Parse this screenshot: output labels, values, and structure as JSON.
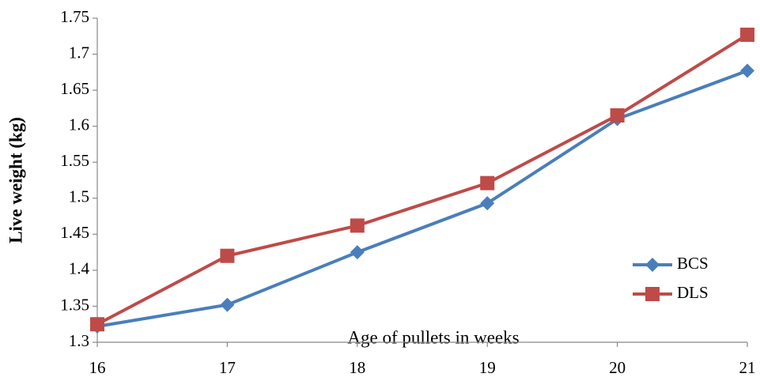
{
  "chart_data": {
    "type": "line",
    "x_label": "Age of pullets in weeks",
    "y_label": "Live weight (kg)",
    "x": [
      16,
      17,
      18,
      19,
      20,
      21
    ],
    "xlim": [
      16,
      21
    ],
    "xticks": [
      16,
      17,
      18,
      19,
      20,
      21
    ],
    "ylim": [
      1.3,
      1.75
    ],
    "yticks": [
      1.3,
      1.35,
      1.4,
      1.45,
      1.5,
      1.55,
      1.6,
      1.65,
      1.7,
      1.75
    ],
    "legend": "lower right",
    "series": [
      {
        "name": "BCS",
        "color": "#4a7ebb",
        "marker": "diamond",
        "values": [
          1.322,
          1.352,
          1.425,
          1.493,
          1.61,
          1.677
        ]
      },
      {
        "name": "DLS",
        "color": "#be4b48",
        "marker": "square",
        "values": [
          1.325,
          1.42,
          1.462,
          1.521,
          1.615,
          1.727
        ]
      }
    ]
  }
}
